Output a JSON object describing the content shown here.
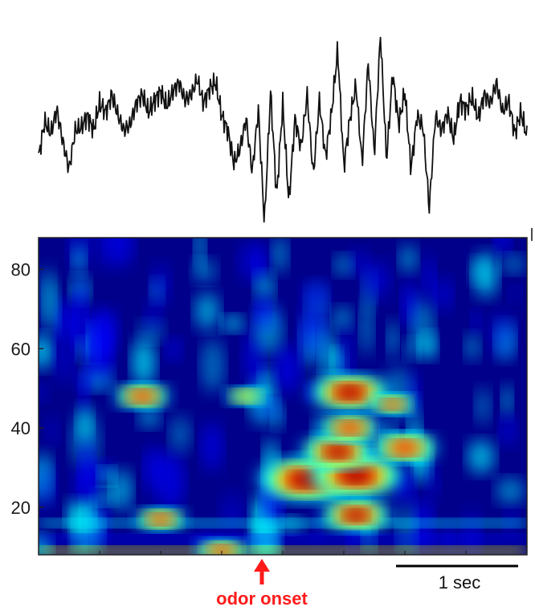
{
  "chart_data": [
    {
      "type": "line",
      "description_role": "raw LFP trace",
      "title": "",
      "xlabel": "",
      "ylabel": "",
      "x_units": "sec",
      "xlim": [
        0,
        4.0
      ],
      "series": [
        {
          "x": [
            0.0,
            0.05,
            0.1,
            0.15,
            0.2,
            0.25,
            0.3,
            0.35,
            0.4,
            0.45,
            0.5,
            0.55,
            0.6,
            0.65,
            0.7,
            0.75,
            0.8,
            0.85,
            0.9,
            0.95,
            1.0,
            1.05,
            1.1,
            1.15,
            1.2,
            1.25,
            1.3,
            1.35,
            1.4,
            1.45,
            1.5,
            1.55,
            1.6,
            1.65,
            1.7,
            1.75,
            1.8,
            1.85,
            1.9,
            1.95,
            2.0,
            2.05,
            2.1,
            2.15,
            2.2,
            2.25,
            2.3,
            2.35,
            2.4,
            2.45,
            2.5,
            2.55,
            2.6,
            2.65,
            2.7,
            2.75,
            2.8,
            2.85,
            2.9,
            2.95,
            3.0,
            3.05,
            3.1,
            3.15,
            3.2,
            3.25,
            3.3,
            3.35,
            3.4,
            3.45,
            3.5,
            3.55,
            3.6,
            3.65,
            3.7,
            3.75,
            3.8,
            3.85,
            3.9,
            3.95,
            4.0
          ],
          "y": [
            -0.35,
            0.25,
            0.05,
            0.45,
            -0.1,
            -0.55,
            0.1,
            0.15,
            0.35,
            0.1,
            0.55,
            0.4,
            0.7,
            0.35,
            0.1,
            0.2,
            0.55,
            0.7,
            0.4,
            0.6,
            0.75,
            0.5,
            0.75,
            0.9,
            0.6,
            0.7,
            0.95,
            0.55,
            0.8,
            0.9,
            0.35,
            0.1,
            -0.45,
            -0.2,
            0.3,
            -0.6,
            0.45,
            -1.45,
            0.75,
            -1.0,
            0.55,
            -1.1,
            0.3,
            -0.2,
            0.7,
            -0.65,
            0.6,
            -0.35,
            0.4,
            1.45,
            -0.5,
            0.3,
            0.85,
            -0.45,
            1.25,
            -0.3,
            1.7,
            -0.4,
            1.05,
            0.2,
            0.75,
            -0.55,
            0.35,
            0.15,
            -1.2,
            0.35,
            0.1,
            0.4,
            -0.05,
            0.6,
            0.45,
            0.65,
            0.3,
            0.7,
            0.55,
            0.9,
            0.4,
            0.6,
            0.05,
            0.4,
            0.0
          ]
        }
      ]
    },
    {
      "type": "heatmap",
      "description_role": "wavelet spectrogram",
      "title": "",
      "xlabel": "",
      "ylabel": "",
      "ylim": [
        8,
        88
      ],
      "y_ticks": [
        "80",
        "60",
        "40",
        "20"
      ],
      "colormap": [
        "#00008b",
        "#0000ff",
        "#00ffff",
        "#ffff00",
        "#ff0000",
        "#8b0000"
      ],
      "hotspots": [
        {
          "t": 2.2,
          "f": 27,
          "power": 1.0
        },
        {
          "t": 2.6,
          "f": 28,
          "power": 0.95
        },
        {
          "t": 2.45,
          "f": 34,
          "power": 0.75
        },
        {
          "t": 2.55,
          "f": 49,
          "power": 0.8
        },
        {
          "t": 2.55,
          "f": 40,
          "power": 0.6
        },
        {
          "t": 3.0,
          "f": 35,
          "power": 0.65
        },
        {
          "t": 2.6,
          "f": 18,
          "power": 0.7
        },
        {
          "t": 0.85,
          "f": 48,
          "power": 0.55
        },
        {
          "t": 1.0,
          "f": 17,
          "power": 0.5
        },
        {
          "t": 1.7,
          "f": 48,
          "power": 0.4
        },
        {
          "t": 2.9,
          "f": 46,
          "power": 0.45
        },
        {
          "t": 1.5,
          "f": 9,
          "power": 0.5
        }
      ]
    }
  ],
  "annotations": {
    "scale_bar_label": "1 sec",
    "onset_label": "odor onset",
    "onset_color": "#ff1a1a"
  }
}
